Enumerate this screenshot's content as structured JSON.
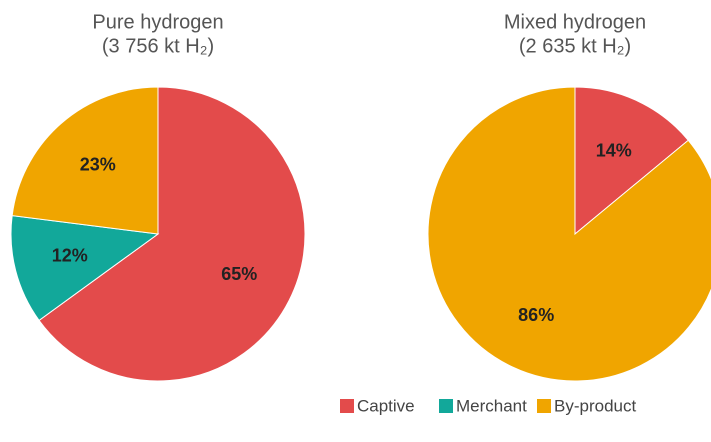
{
  "chart_data": [
    {
      "type": "pie",
      "title": [
        "Pure hydrogen",
        "(3 756 kt H₂)"
      ],
      "categories": [
        "Captive",
        "Merchant",
        "By-product"
      ],
      "values": [
        65,
        12,
        23
      ],
      "value_labels": [
        "65%",
        "12%",
        "23%"
      ],
      "colors": [
        "#e34b4b",
        "#12a89a",
        "#f0a500"
      ]
    },
    {
      "type": "pie",
      "title": [
        "Mixed hydrogen",
        "(2 635 kt H₂)"
      ],
      "categories": [
        "Captive",
        "By-product"
      ],
      "values": [
        14,
        86
      ],
      "value_labels": [
        "14%",
        "86%"
      ],
      "colors": [
        "#e34b4b",
        "#f0a500"
      ]
    }
  ]
}
